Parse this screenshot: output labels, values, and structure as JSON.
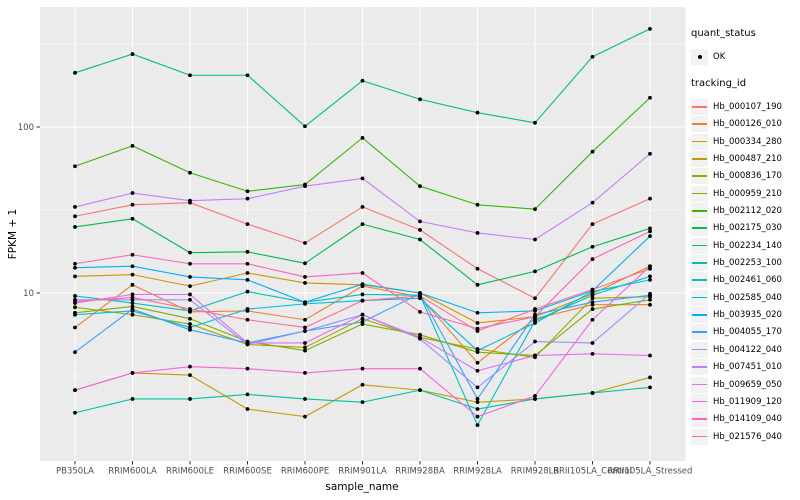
{
  "figure": {
    "background": "#FFFFFF",
    "panel_background": "#EBEBEB",
    "grid_color": "#FFFFFF",
    "tick_color": "#333333",
    "tick_label_color": "#4D4D4D",
    "point_color": "#000000"
  },
  "legend": {
    "quant_status_title": "quant_status",
    "quant_status_items": [
      {
        "label": "OK",
        "symbol": "point"
      }
    ],
    "tracking_title": "tracking_id"
  },
  "chart_data": {
    "type": "line",
    "title": "",
    "xlabel": "sample_name",
    "ylabel": "FPKM + 1",
    "y_scale": "log10",
    "ylim": [
      1,
      530
    ],
    "y_ticks": [
      10,
      100
    ],
    "y_minor_ticks": [
      3.1623,
      31.623,
      316.23
    ],
    "grid": true,
    "legend_position": "right",
    "point_shape": "circle",
    "categories": [
      "PB350LA",
      "RRIM600LA",
      "RRIM600LE",
      "RRIM600SE",
      "RRIM600PE",
      "RRIM901LA",
      "RRIM928BA",
      "RRIM928LA",
      "RRIM928LB",
      "RRII105LA_Control",
      "RRII105LA_Stressed"
    ],
    "series": [
      {
        "name": "Hb_000107_190",
        "color": "#F8766D",
        "values": [
          29,
          34,
          35,
          26,
          20,
          33,
          24,
          14,
          9.3,
          26,
          37
        ]
      },
      {
        "name": "Hb_000126_010",
        "color": "#EA8331",
        "values": [
          6.2,
          11.2,
          7.7,
          7.8,
          6.9,
          11,
          9.5,
          3.8,
          7,
          8.5,
          8.5
        ]
      },
      {
        "name": "Hb_000334_280",
        "color": "#D89000",
        "values": [
          12.6,
          12.9,
          11,
          13.2,
          11.5,
          11.2,
          10,
          6.6,
          7.2,
          9.9,
          14.5
        ]
      },
      {
        "name": "Hb_000487_210",
        "color": "#C09B00",
        "values": [
          2.6,
          3.3,
          3.2,
          2,
          1.8,
          2.8,
          2.6,
          2.2,
          2.3,
          2.5,
          3.1
        ]
      },
      {
        "name": "Hb_000836_170",
        "color": "#A3A500",
        "values": [
          8.2,
          7.4,
          6.5,
          4.9,
          4.7,
          7,
          5.4,
          4.6,
          4.1,
          9.3,
          9.5
        ]
      },
      {
        "name": "Hb_000959_210",
        "color": "#7CAE00",
        "values": [
          7.6,
          8.3,
          7,
          5.1,
          4.5,
          6.5,
          5.6,
          4.4,
          4.2,
          8,
          9.1
        ]
      },
      {
        "name": "Hb_002112_020",
        "color": "#39B600",
        "values": [
          58,
          77,
          53,
          41,
          45,
          86,
          44,
          34,
          32,
          71,
          150
        ]
      },
      {
        "name": "Hb_002175_030",
        "color": "#00BB4E",
        "values": [
          25,
          28,
          17.5,
          17.7,
          15.1,
          26,
          21,
          11.2,
          13.5,
          19,
          24.5
        ]
      },
      {
        "name": "Hb_002234_140",
        "color": "#00BF7D",
        "values": [
          212,
          275,
          205,
          205,
          101,
          190,
          147,
          122,
          106,
          265,
          390
        ]
      },
      {
        "name": "Hb_002253_100",
        "color": "#00C1A3",
        "values": [
          1.9,
          2.3,
          2.3,
          2.45,
          2.3,
          2.2,
          2.6,
          2,
          2.3,
          2.5,
          2.7
        ]
      },
      {
        "name": "Hb_002461_060",
        "color": "#00BFC4",
        "values": [
          9.6,
          8.7,
          7.8,
          10.2,
          8.8,
          9.8,
          9.7,
          1.6,
          6.8,
          9.7,
          12.6
        ]
      },
      {
        "name": "Hb_002585_040",
        "color": "#00BAE0",
        "values": [
          7.4,
          7.8,
          6.2,
          8,
          8.6,
          9,
          9.3,
          4.5,
          6.6,
          10.2,
          12
        ]
      },
      {
        "name": "Hb_003935_020",
        "color": "#00B0F6",
        "values": [
          14.2,
          14.5,
          12.5,
          12,
          8.8,
          11.3,
          10,
          7.6,
          7.8,
          10.3,
          22
        ]
      },
      {
        "name": "Hb_004055_170",
        "color": "#35A2FF",
        "values": [
          4.4,
          8,
          6,
          5,
          5.9,
          6.7,
          9.9,
          2.3,
          7.4,
          8.8,
          9.7
        ]
      },
      {
        "name": "Hb_004122_040",
        "color": "#9590FF",
        "values": [
          9.1,
          9.1,
          9.1,
          4.9,
          5.9,
          7.4,
          5.3,
          2.7,
          5.1,
          5,
          9.9
        ]
      },
      {
        "name": "Hb_007451_010",
        "color": "#C77CFF",
        "values": [
          33,
          40,
          36,
          37,
          44,
          49,
          27,
          23,
          21,
          35,
          69
        ]
      },
      {
        "name": "Hb_009659_050",
        "color": "#E76BF3",
        "values": [
          8.7,
          9.8,
          9.8,
          5,
          5,
          7.4,
          5.4,
          3.4,
          4.2,
          4.3,
          4.2
        ]
      },
      {
        "name": "Hb_011909_120",
        "color": "#FA62DB",
        "values": [
          2.6,
          3.3,
          3.6,
          3.5,
          3.3,
          3.5,
          3.5,
          1.8,
          2.4,
          6.9,
          14.5
        ]
      },
      {
        "name": "Hb_014109_040",
        "color": "#FF62BC",
        "values": [
          15,
          17,
          15,
          15,
          12.5,
          13.2,
          7.7,
          6.1,
          7.2,
          16,
          23.5
        ]
      },
      {
        "name": "Hb_021576_040",
        "color": "#FF6C90",
        "values": [
          8.9,
          9.4,
          8,
          6.9,
          6.2,
          9,
          9.6,
          5.9,
          8,
          10.5,
          14
        ]
      }
    ]
  }
}
